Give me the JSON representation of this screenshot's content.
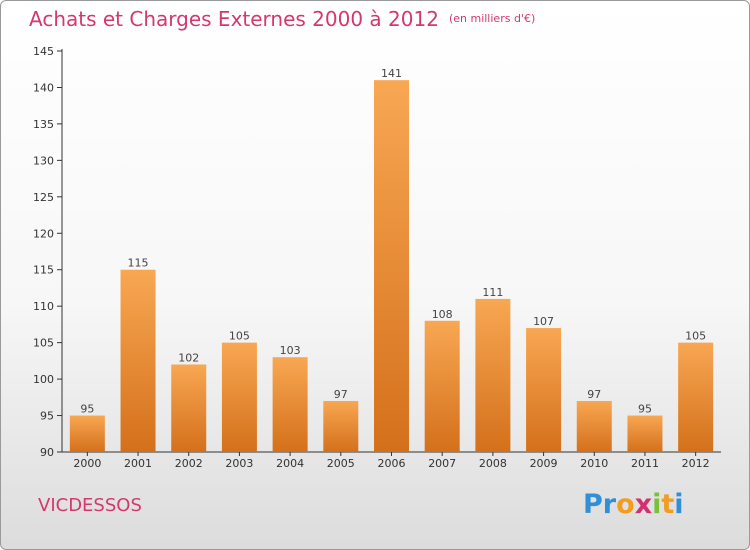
{
  "title": "Achats et Charges Externes 2000 à 2012",
  "unit_note": "(en milliers d'€)",
  "commune": "VICDESSOS",
  "logo": {
    "letters": [
      "P",
      "r",
      "o",
      "x",
      "i",
      "t",
      "i"
    ],
    "colors": [
      "#2f8fd8",
      "#2f8fd8",
      "#f39c1f",
      "#d42f6e",
      "#7cbf3a",
      "#f39c1f",
      "#2f8fd8"
    ]
  },
  "colors": {
    "title": "#d4386e",
    "bar_light": "#f8a753",
    "bar_dark": "#d4701b",
    "axis": "#333333"
  },
  "chart_data": {
    "type": "bar",
    "categories": [
      "2000",
      "2001",
      "2002",
      "2003",
      "2004",
      "2005",
      "2006",
      "2007",
      "2008",
      "2009",
      "2010",
      "2011",
      "2012"
    ],
    "values": [
      95,
      115,
      102,
      105,
      103,
      97,
      141,
      108,
      111,
      107,
      97,
      95,
      105
    ],
    "ylim": [
      90,
      145
    ],
    "yticks": [
      90,
      95,
      100,
      105,
      110,
      115,
      120,
      125,
      130,
      135,
      140,
      145
    ],
    "xlabel": "",
    "ylabel": "",
    "grid": false
  }
}
